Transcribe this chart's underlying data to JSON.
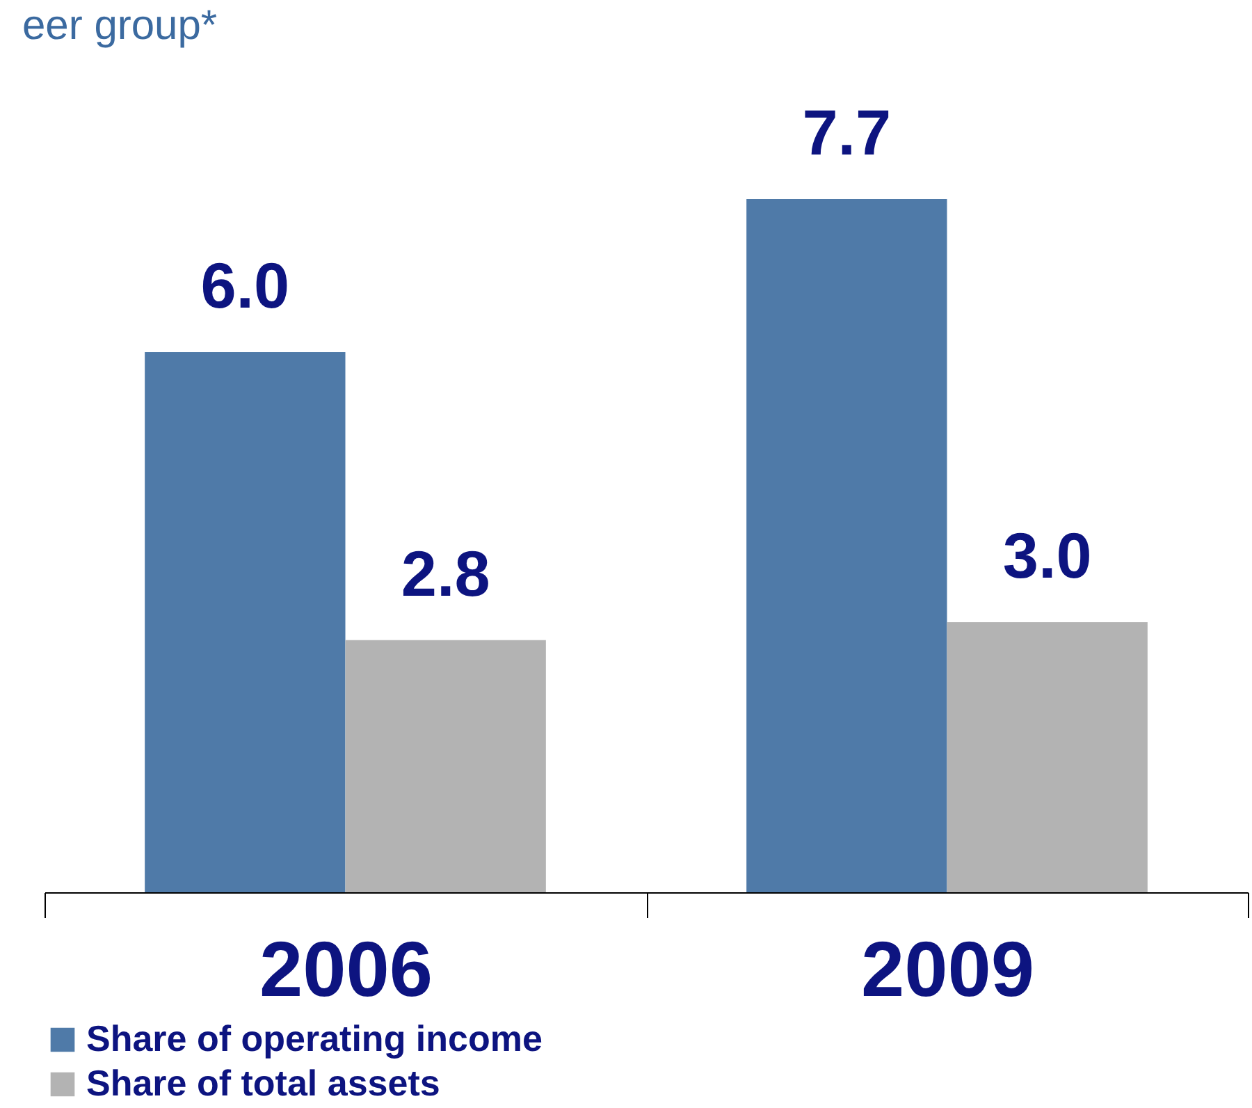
{
  "chart_data": {
    "type": "bar",
    "title": "eer group*",
    "categories": [
      "2006",
      "2009"
    ],
    "series": [
      {
        "name": "Share of operating income",
        "color": "#4f7aa8",
        "values": [
          6.0,
          7.7
        ],
        "value_labels": [
          "6.0",
          "7.7"
        ]
      },
      {
        "name": "Share of total assets",
        "color": "#b3b3b3",
        "values": [
          2.8,
          3.0
        ],
        "value_labels": [
          "2.8",
          "3.0"
        ]
      }
    ],
    "legend": "bottom",
    "grid": false
  }
}
